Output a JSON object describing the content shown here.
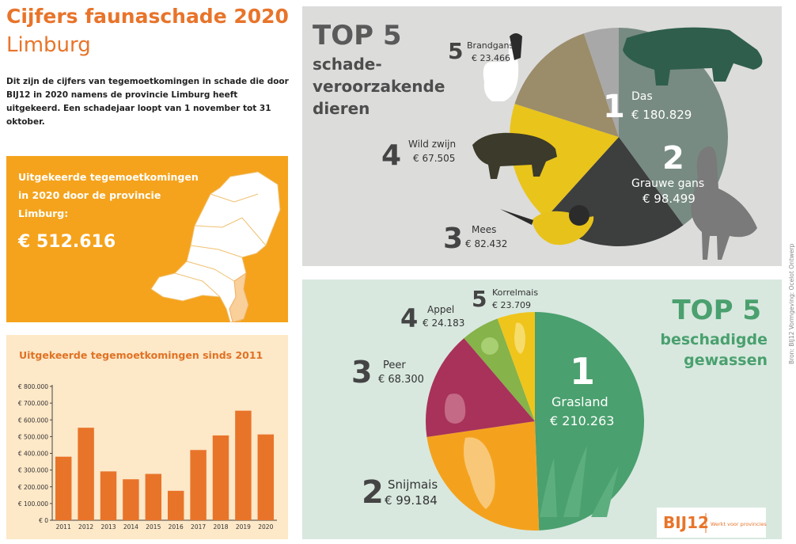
{
  "header": {
    "title": "Cijfers faunaschade 2020",
    "subtitle": "Limburg",
    "intro": "Dit zijn de cijfers van tegemoetkomingen in schade die door BIJ12 in 2020 namens de provincie Limburg heeft uitgekeerd. Een schadejaar loopt van 1 november tot 31 oktober."
  },
  "total_card": {
    "label": "Uitgekeerde tegemoetkomingen in 2020 door de provincie Limburg:",
    "value": "€ 512.616"
  },
  "colors": {
    "orange": "#f5a31c",
    "bar": "#e8742a",
    "animals_bg": "#dcdcdb",
    "crops_bg": "#d8e8df",
    "crops_title": "#4aa06e"
  },
  "chart_data": [
    {
      "type": "bar",
      "title": "Uitgekeerde tegemoetkomingen sinds 2011",
      "categories": [
        "2011",
        "2012",
        "2013",
        "2014",
        "2015",
        "2016",
        "2017",
        "2018",
        "2019",
        "2020"
      ],
      "values": [
        380000,
        553000,
        292000,
        245000,
        277000,
        176000,
        420000,
        507000,
        655000,
        513000
      ],
      "ylim": [
        0,
        800000
      ],
      "yticks": [
        0,
        100000,
        200000,
        300000,
        400000,
        500000,
        600000,
        700000,
        800000
      ],
      "ytick_labels": [
        "€ 0",
        "€ 100.000",
        "€ 200.000",
        "€ 300.000",
        "€ 400.000",
        "€ 500.000",
        "€ 600.000",
        "€ 700.000",
        "€ 800.000"
      ],
      "grid": false
    },
    {
      "type": "pie",
      "title": "TOP 5",
      "subtitle": "schade-\nveroorzakende\ndieren",
      "slices": [
        {
          "rank": "1",
          "name": "Das",
          "label": "€ 180.829",
          "value": 180829,
          "color": "#778b82"
        },
        {
          "rank": "2",
          "name": "Grauwe gans",
          "label": "€ 98.499",
          "value": 98499,
          "color": "#3d3e3e"
        },
        {
          "rank": "3",
          "name": "Mees",
          "label": "€ 82.432",
          "value": 82432,
          "color": "#e9c41b"
        },
        {
          "rank": "4",
          "name": "Wild zwijn",
          "label": "€ 67.505",
          "value": 67505,
          "color": "#9b8c6a"
        },
        {
          "rank": "5",
          "name": "Brandgans",
          "label": "€ 23.466",
          "value": 23466,
          "color": "#a8a8a8"
        }
      ]
    },
    {
      "type": "pie",
      "title": "TOP 5",
      "subtitle": "beschadigde\ngewassen",
      "slices": [
        {
          "rank": "1",
          "name": "Grasland",
          "label": "€ 210.263",
          "value": 210263,
          "color": "#4aa06e"
        },
        {
          "rank": "2",
          "name": "Snijmais",
          "label": "€ 99.184",
          "value": 99184,
          "color": "#f4a21e"
        },
        {
          "rank": "3",
          "name": "Peer",
          "label": "€ 68.300",
          "value": 68300,
          "color": "#a8325a"
        },
        {
          "rank": "4",
          "name": "Appel",
          "label": "€ 24.183",
          "value": 24183,
          "color": "#86b34a"
        },
        {
          "rank": "5",
          "name": "Korrelmais",
          "label": "€ 23.709",
          "value": 23709,
          "color": "#efc51c"
        }
      ]
    }
  ],
  "logo": {
    "text": "BIJ12",
    "tagline": "Werkt voor provincies"
  },
  "credit": "Bron: BIJ12   Vormgeving: Ocelot Ontwerp"
}
